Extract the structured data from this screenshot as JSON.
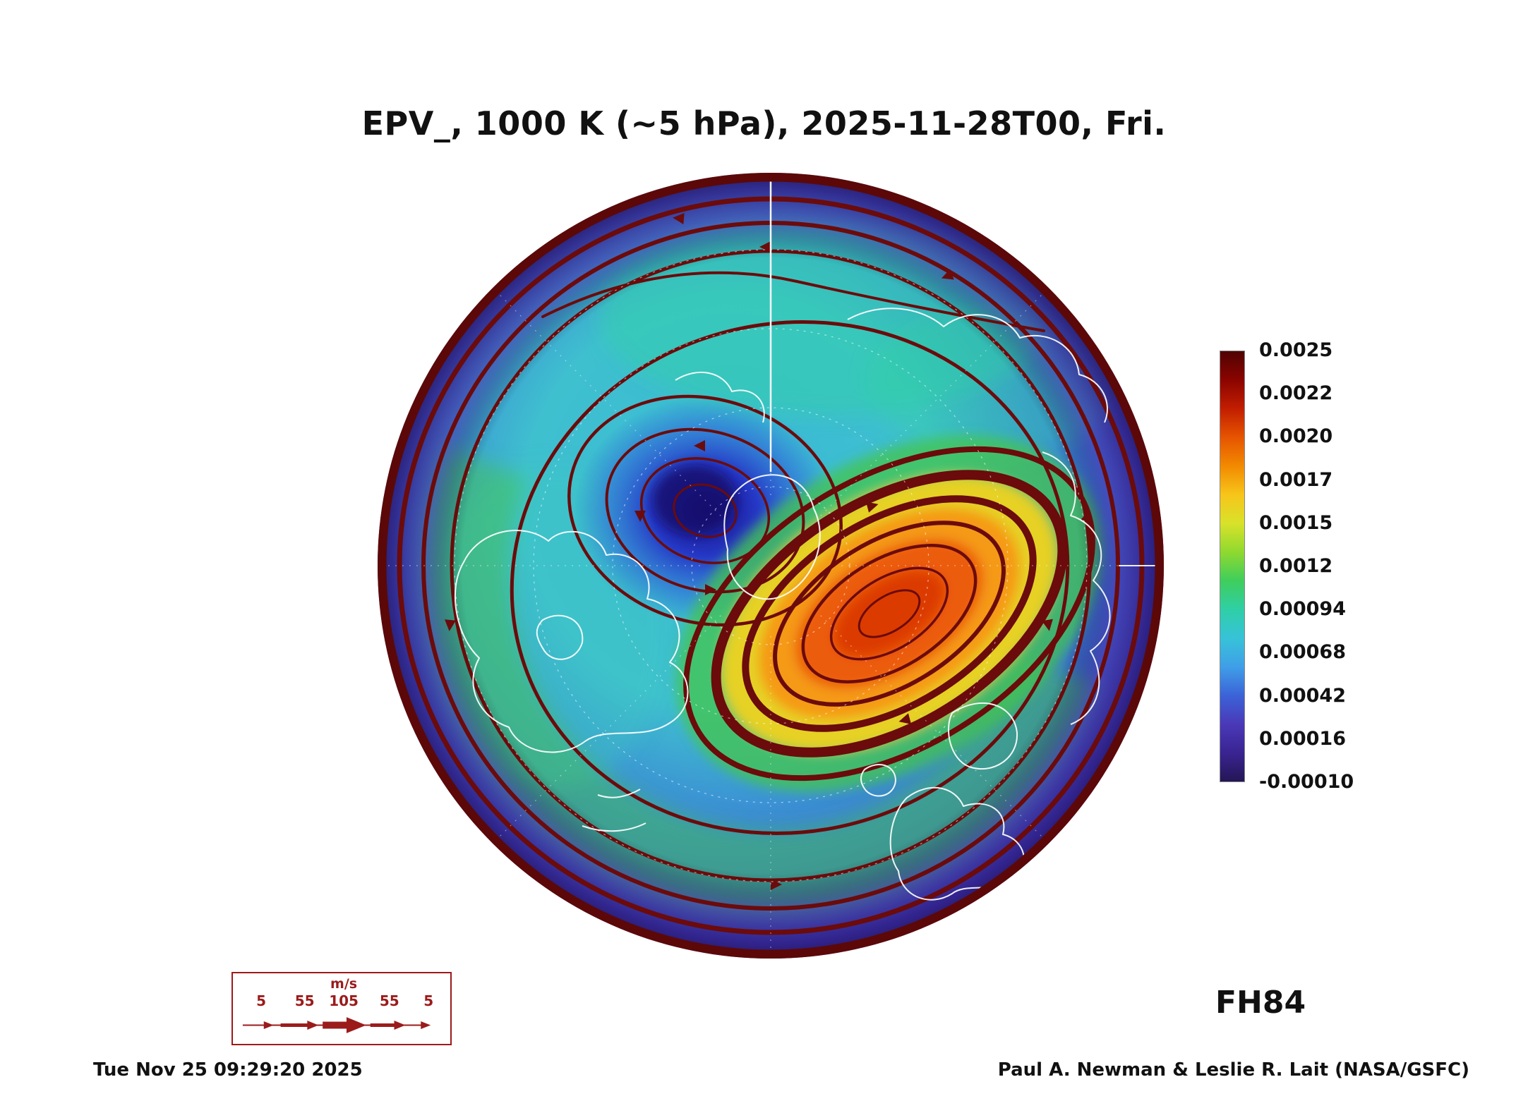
{
  "title": "EPV_, 1000 K (~5 hPa), 2025-11-28T00, Fri.",
  "forecast_label": "FH84",
  "footer": {
    "timestamp": "Tue Nov 25 09:29:20 2025",
    "credit": "Paul A. Newman & Leslie R. Lait (NASA/GSFC)"
  },
  "wind_legend": {
    "unit": "m/s",
    "values": [
      "5",
      "55",
      "105",
      "55",
      "5"
    ]
  },
  "colors": {
    "streamline_maroon": "#6b0b0b",
    "rim_maroon": "#5c0808",
    "coastline_white": "#ffffff",
    "legend_text_red": "#9b1b1b",
    "text_black": "#111111"
  },
  "chart_data": {
    "type": "heatmap",
    "title": "EPV_, 1000 K (~5 hPa), 2025-11-28T00, Fri.",
    "field": "Ertel potential vorticity (EPV) with wind streamlines",
    "level": "1000 K (~5 hPa)",
    "valid_time": "2025-11-28T00, Fri.",
    "forecast_hour": "FH84",
    "projection": "north polar stereographic disc",
    "colorbar": {
      "ticks": [
        "0.0025",
        "0.0022",
        "0.0020",
        "0.0017",
        "0.0015",
        "0.0012",
        "0.00094",
        "0.00068",
        "0.00042",
        "0.00016",
        "-0.00010"
      ],
      "range": [
        -0.0001,
        0.0025
      ],
      "colors_top_to_bottom": [
        "#4f0303",
        "#8b0400",
        "#c21e00",
        "#e65400",
        "#f28a00",
        "#f7c51a",
        "#d8e22a",
        "#8fd92f",
        "#3fce5c",
        "#2fcfa6",
        "#37c3d8",
        "#3f9fe8",
        "#3b63d8",
        "#4a39b8",
        "#3a2492",
        "#241655"
      ]
    },
    "wind_scale": {
      "unit": "m/s",
      "values": [
        5,
        55,
        105,
        55,
        5
      ]
    },
    "features": [
      {
        "name": "polar cyclone low-EPV core",
        "appearance": "deep blue-purple center left of pole"
      },
      {
        "name": "displaced high-EPV anticyclonic lobe",
        "appearance": "orange-red oval ringed by yellow and green, lower right"
      },
      {
        "name": "disc rim",
        "appearance": "dark maroon ring"
      }
    ]
  }
}
